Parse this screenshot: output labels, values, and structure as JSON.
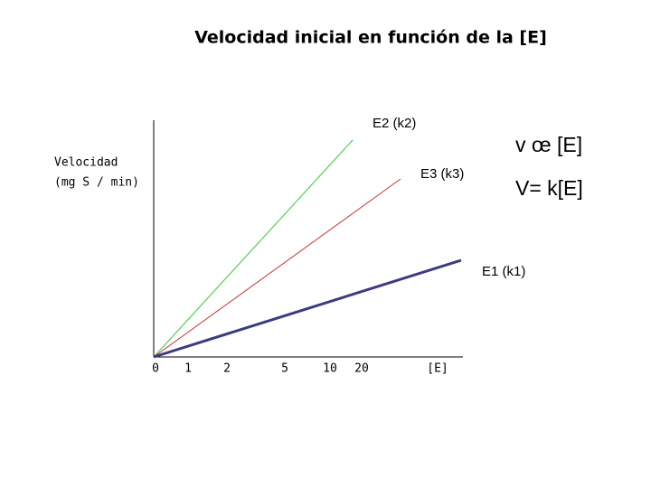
{
  "title": "Velocidad inicial en función de la [E]",
  "y_axis": {
    "label": "Velocidad",
    "unit": "(mg S / min)"
  },
  "x_axis": {
    "ticks": [
      "0",
      "1",
      "2",
      "5",
      "10",
      "20"
    ],
    "label": "[E]"
  },
  "lines": [
    {
      "label": "E2 (k2)"
    },
    {
      "label": "E3 (k3)"
    },
    {
      "label": "E1 (k1)"
    }
  ],
  "equations": [
    "v œ [E]",
    "V= k[E]"
  ]
}
